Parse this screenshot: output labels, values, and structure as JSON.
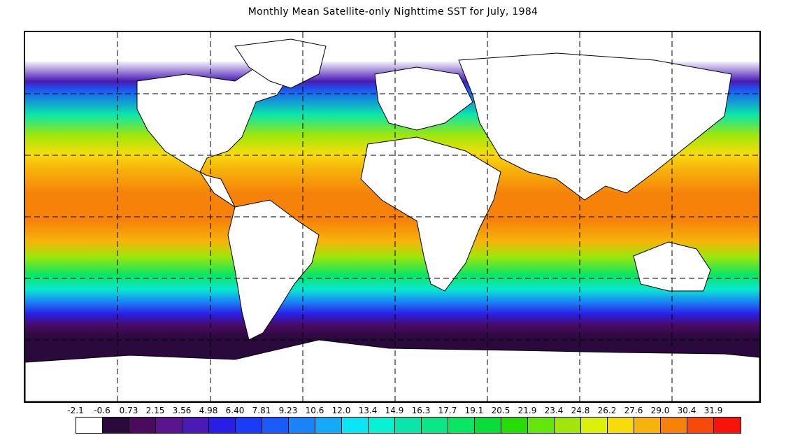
{
  "title": "Monthly Mean Satellite-only Nighttime SST for July, 1984",
  "colorbar": {
    "labels": [
      "-2.1",
      "-0.6",
      "0.73",
      "2.15",
      "3.56",
      "4.98",
      "6.40",
      "7.81",
      "9.23",
      "10.6",
      "12.0",
      "13.4",
      "14.9",
      "16.3",
      "17.7",
      "19.1",
      "20.5",
      "21.9",
      "23.4",
      "24.8",
      "26.2",
      "27.6",
      "29.0",
      "30.4",
      "31.9"
    ],
    "colors": [
      "#ffffff",
      "#2a0a3c",
      "#4a0a5e",
      "#5a1490",
      "#4a1ab4",
      "#2a1ee6",
      "#1a3cf6",
      "#1a5af6",
      "#1a84f6",
      "#14aaf6",
      "#0ae6f6",
      "#0af0d2",
      "#0ae6aa",
      "#0ae688",
      "#0ae662",
      "#0adc3c",
      "#28dc0a",
      "#64e60a",
      "#a0e60a",
      "#dcf00a",
      "#f6dc0a",
      "#f6b40a",
      "#f6820a",
      "#f64a0a",
      "#f6140a"
    ]
  }
}
